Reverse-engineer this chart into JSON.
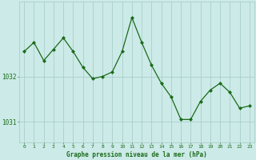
{
  "hours": [
    0,
    1,
    2,
    3,
    4,
    5,
    6,
    7,
    8,
    9,
    10,
    11,
    12,
    13,
    14,
    15,
    16,
    17,
    18,
    19,
    20,
    21,
    22,
    23
  ],
  "pressure": [
    1032.55,
    1032.75,
    1032.35,
    1032.6,
    1032.85,
    1032.55,
    1032.2,
    1031.95,
    1032.0,
    1032.1,
    1032.55,
    1033.3,
    1032.75,
    1032.25,
    1031.85,
    1031.55,
    1031.05,
    1031.05,
    1031.45,
    1031.7,
    1031.85,
    1031.65,
    1031.3,
    1031.35
  ],
  "line_color": "#1a6b1a",
  "marker_color": "#1a6b1a",
  "bg_color": "#cceae7",
  "grid_color": "#aacfcb",
  "xlabel": "Graphe pression niveau de la mer (hPa)",
  "xlabel_color": "#1a6b1a",
  "tick_color": "#1a6b1a",
  "ytick_labels": [
    "1031",
    "1032"
  ],
  "ytick_values": [
    1031.0,
    1032.0
  ],
  "ylim": [
    1030.55,
    1033.65
  ],
  "xlim": [
    -0.5,
    23.5
  ],
  "xtick_values": [
    0,
    1,
    2,
    3,
    4,
    5,
    6,
    7,
    8,
    9,
    10,
    11,
    12,
    13,
    14,
    15,
    16,
    17,
    18,
    19,
    20,
    21,
    22,
    23
  ]
}
